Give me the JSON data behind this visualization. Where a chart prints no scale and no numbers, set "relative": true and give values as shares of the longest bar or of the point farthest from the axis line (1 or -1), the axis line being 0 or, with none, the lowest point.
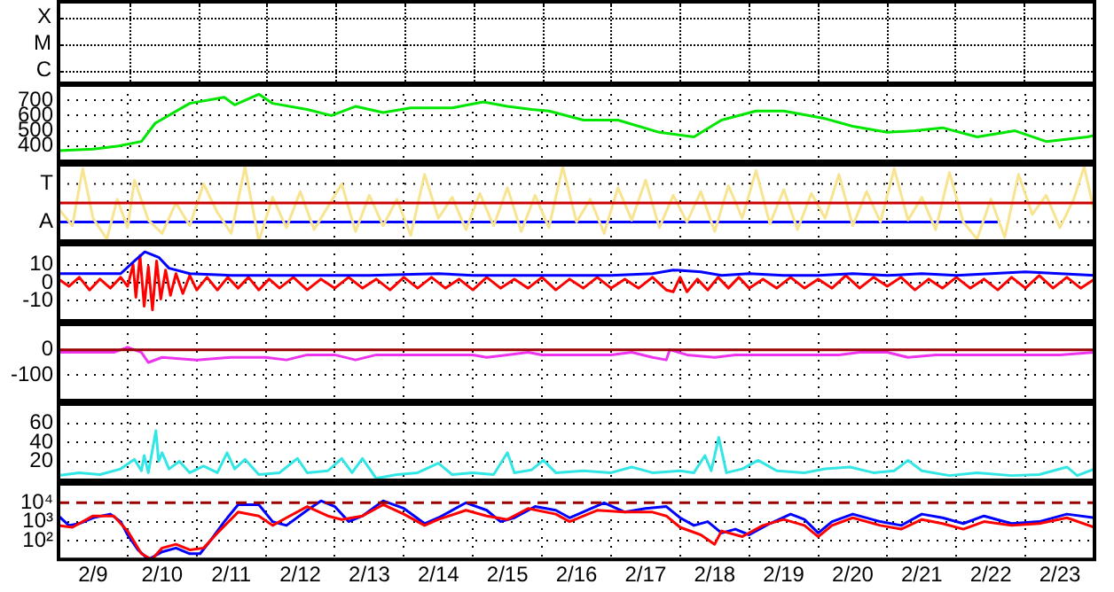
{
  "chart_data": [
    {
      "type": "other",
      "annotations": [
        "X",
        "M",
        "C"
      ]
    },
    {
      "type": "line",
      "tick_labels": "y",
      "grid": true,
      "xlim": [
        "--02-09",
        "--02-24"
      ],
      "xticks": [
        {
          "value": "--02-10",
          "label": null
        },
        {
          "value": "--02-11",
          "label": null
        },
        {
          "value": "--02-12",
          "label": null
        },
        {
          "value": "--02-13",
          "label": null
        },
        {
          "value": "--02-14",
          "label": null
        },
        {
          "value": "--02-15",
          "label": null
        },
        {
          "value": "--02-16",
          "label": null
        },
        {
          "value": "--02-17",
          "label": null
        },
        {
          "value": "--02-18",
          "label": null
        },
        {
          "value": "--02-19",
          "label": null
        },
        {
          "value": "--02-20",
          "label": null
        },
        {
          "value": "--02-21",
          "label": null
        },
        {
          "value": "--02-22",
          "label": null
        },
        {
          "value": "--02-23",
          "label": null
        }
      ],
      "ylim": [
        300,
        800
      ],
      "yticks": [
        400,
        500,
        600,
        700
      ],
      "series": [
        {
          "color": "#00e600",
          "x": [
            "--02-09",
            "--02-09T12:00",
            "--02-09T20:53",
            "--02-10T04:48",
            "--02-10T09:36",
            "--02-10T21:36",
            "--02-11T09:36",
            "--02-11T13:12",
            "--02-11T21:36",
            "--02-12T02:24",
            "--02-12T14:24",
            "--02-12T22:48",
            "--02-13T07:12",
            "--02-13T16:48",
            "--02-14T02:24",
            "--02-14T16:48",
            "--02-15T03:36",
            "--02-15T12:00",
            "--02-15T20:24",
            "--02-16T02:24",
            "--02-16T14:24",
            "--02-17T02:24",
            "--02-17T16:48",
            "--02-18T04:48",
            "--02-18T14:24",
            "--02-19T02:24",
            "--02-19T12:00",
            "--02-20T02:24",
            "--02-20T12:00",
            "--02-21",
            "--02-21T09:36",
            "--02-21T19:12",
            "--02-22T07:12",
            "--02-22T20:24",
            "--02-23T07:12",
            "--02-23T21:36",
            "--02-24"
          ],
          "values": [
            370,
            380,
            400,
            430,
            550,
            680,
            720,
            670,
            740,
            680,
            640,
            600,
            660,
            620,
            650,
            650,
            690,
            660,
            640,
            630,
            570,
            570,
            490,
            460,
            570,
            630,
            630,
            580,
            530,
            490,
            500,
            520,
            460,
            500,
            430,
            460,
            470
          ]
        }
      ]
    },
    {
      "type": "line",
      "relative": true,
      "tick_labels": false,
      "grid": true,
      "xlim": [
        "--02-09",
        "--02-24"
      ],
      "xticks": [
        {
          "value": "--02-10",
          "label": null
        },
        {
          "value": "--02-11",
          "label": null
        },
        {
          "value": "--02-12",
          "label": null
        },
        {
          "value": "--02-13",
          "label": null
        },
        {
          "value": "--02-14",
          "label": null
        },
        {
          "value": "--02-15",
          "label": null
        },
        {
          "value": "--02-16",
          "label": null
        },
        {
          "value": "--02-17",
          "label": null
        },
        {
          "value": "--02-18",
          "label": null
        },
        {
          "value": "--02-19",
          "label": null
        },
        {
          "value": "--02-20",
          "label": null
        },
        {
          "value": "--02-21",
          "label": null
        },
        {
          "value": "--02-22",
          "label": null
        },
        {
          "value": "--02-23",
          "label": null
        }
      ],
      "annotations": [
        "T",
        "A"
      ],
      "ref_lines": [
        {
          "axis": "y",
          "value": 0,
          "color": "#cc0000"
        }
      ],
      "series": [
        {
          "color": "#f8e490",
          "x": [
            "--02-09",
            "--02-09T04:48",
            "--02-09T08:24",
            "--02-09T12:00",
            "--02-09T16:48",
            "--02-09T20:24",
            "--02-10",
            "--02-10T02:24",
            "--02-10T07:12",
            "--02-10T12:00",
            "--02-10T16:48",
            "--02-10T21:36",
            "--02-11T02:24",
            "--02-11T07:12",
            "--02-11T12:00",
            "--02-11T16:48",
            "--02-11T21:36",
            "--02-12T02:24",
            "--02-12T07:12",
            "--02-12T12:00",
            "--02-12T16:48",
            "--02-12T21:36",
            "--02-13T02:24",
            "--02-13T07:12",
            "--02-13T12:00",
            "--02-13T16:48",
            "--02-13T21:36",
            "--02-14T02:24",
            "--02-14T07:12",
            "--02-14T12:00",
            "--02-14T16:48",
            "--02-14T21:36",
            "--02-15T02:24",
            "--02-15T07:12",
            "--02-15T12:00",
            "--02-15T16:48",
            "--02-15T21:36",
            "--02-16T02:24",
            "--02-16T07:12",
            "--02-16T12:00",
            "--02-16T16:48",
            "--02-16T21:36",
            "--02-17T02:24",
            "--02-17T07:12",
            "--02-17T12:00",
            "--02-17T16:48",
            "--02-17T21:36",
            "--02-18T02:24",
            "--02-18T07:12",
            "--02-18T12:00",
            "--02-18T16:48",
            "--02-18T21:36",
            "--02-19T02:24",
            "--02-19T07:12",
            "--02-19T12:00",
            "--02-19T16:48",
            "--02-19T21:36",
            "--02-20T02:24",
            "--02-20T07:12",
            "--02-20T12:00",
            "--02-20T16:48",
            "--02-20T21:36",
            "--02-21T02:24",
            "--02-21T07:12",
            "--02-21T12:00",
            "--02-21T16:48",
            "--02-21T21:36",
            "--02-22T02:24",
            "--02-22T07:12",
            "--02-22T12:00",
            "--02-22T16:48",
            "--02-22T21:36",
            "--02-23T02:24",
            "--02-23T07:12",
            "--02-23T12:00",
            "--02-23T16:48",
            "--02-23T20:24",
            "--02-24"
          ],
          "values": [
            -0.15,
            -0.6,
            0.9,
            -0.4,
            -0.95,
            0.1,
            -0.65,
            0.6,
            -0.45,
            -0.8,
            0,
            -0.6,
            0.5,
            -0.25,
            -0.8,
            0.95,
            -1,
            0.15,
            -0.65,
            0.3,
            -0.7,
            -0.1,
            0.5,
            -0.75,
            0.2,
            -0.6,
            0.1,
            -0.85,
            0.75,
            -0.4,
            0.15,
            -0.7,
            0.25,
            -0.6,
            0.4,
            -0.75,
            0.2,
            -0.65,
            0.95,
            -0.5,
            0.1,
            -0.8,
            0.4,
            -0.45,
            0.6,
            -0.65,
            0.2,
            -0.5,
            0.3,
            -0.75,
            0.45,
            -0.4,
            0.85,
            -0.55,
            0.35,
            -0.7,
            0.25,
            -0.4,
            0.75,
            -0.6,
            0.3,
            -0.5,
            0.9,
            -0.45,
            0.15,
            -0.7,
            0.8,
            -0.5,
            -0.95,
            0.1,
            -0.9,
            0.75,
            -0.3,
            0.2,
            -0.65,
            0.1,
            0.95,
            -0.25
          ]
        },
        {
          "color": "#0000ff",
          "x": [
            "--02-09",
            "--02-22T14:24"
          ],
          "values": [
            -0.5,
            -0.5
          ]
        }
      ]
    },
    {
      "type": "line",
      "tick_labels": "y",
      "grid": true,
      "xlim": [
        "--02-09",
        "--02-24"
      ],
      "xticks": [
        {
          "value": "--02-10",
          "label": null
        },
        {
          "value": "--02-11",
          "label": null
        },
        {
          "value": "--02-12",
          "label": null
        },
        {
          "value": "--02-13",
          "label": null
        },
        {
          "value": "--02-14",
          "label": null
        },
        {
          "value": "--02-15",
          "label": null
        },
        {
          "value": "--02-16",
          "label": null
        },
        {
          "value": "--02-17",
          "label": null
        },
        {
          "value": "--02-18",
          "label": null
        },
        {
          "value": "--02-19",
          "label": null
        },
        {
          "value": "--02-20",
          "label": null
        },
        {
          "value": "--02-21",
          "label": null
        },
        {
          "value": "--02-22",
          "label": null
        },
        {
          "value": "--02-23",
          "label": null
        }
      ],
      "ylim": [
        -21,
        21
      ],
      "yticks": [
        -10,
        0,
        10
      ],
      "series": [
        {
          "color": "#0000ff",
          "x": [
            "--02-09",
            "--02-09T21:36",
            "--02-10T02:24",
            "--02-10T06:00",
            "--02-10T10:48",
            "--02-10T14:24",
            "--02-10T21:36",
            "--02-11T12:00",
            "--02-12T12:00",
            "--02-13T12:00",
            "--02-14T12:00",
            "--02-15",
            "--02-16",
            "--02-17",
            "--02-17T14:24",
            "--02-17T21:36",
            "--02-18T07:12",
            "--02-18T14:24",
            "--02-19",
            "--02-19T12:00",
            "--02-20",
            "--02-20T12:00",
            "--02-21",
            "--02-21T12:00",
            "--02-22",
            "--02-22T12:00",
            "--02-23",
            "--02-23T12:00",
            "--02-24"
          ],
          "values": [
            5,
            5,
            12,
            17,
            14,
            8,
            5,
            4,
            4,
            4,
            5,
            4,
            4,
            4,
            5,
            7,
            6,
            4,
            5,
            4,
            4,
            5,
            4,
            5,
            4,
            5,
            6,
            5,
            4
          ]
        },
        {
          "color": "#ff0000",
          "x": [
            "--02-09",
            "--02-09T03:36",
            "--02-09T07:12",
            "--02-09T10:48",
            "--02-09T14:24",
            "--02-09T18:00",
            "--02-09T21:36",
            "--02-10",
            "--02-10T01:55",
            "--02-10T02:53",
            "--02-10T04:19",
            "--02-10T05:46",
            "--02-10T07:12",
            "--02-10T08:38",
            "--02-10T10:05",
            "--02-10T11:31",
            "--02-10T13:12",
            "--02-10T14:53",
            "--02-10T16:48",
            "--02-10T19:12",
            "--02-10T21:36",
            "--02-11",
            "--02-11T03:36",
            "--02-11T07:12",
            "--02-11T10:48",
            "--02-11T14:24",
            "--02-11T18:00",
            "--02-11T21:36",
            "--02-12T01:12",
            "--02-12T04:48",
            "--02-12T09:36",
            "--02-12T14:24",
            "--02-12T19:12",
            "--02-13",
            "--02-13T04:48",
            "--02-13T09:36",
            "--02-13T14:24",
            "--02-13T19:12",
            "--02-14",
            "--02-14T04:48",
            "--02-14T09:36",
            "--02-14T14:24",
            "--02-14T19:12",
            "--02-15",
            "--02-15T04:48",
            "--02-15T09:36",
            "--02-15T14:24",
            "--02-15T19:12",
            "--02-16",
            "--02-16T04:48",
            "--02-16T09:36",
            "--02-16T14:24",
            "--02-16T19:12",
            "--02-17",
            "--02-17T04:48",
            "--02-17T09:36",
            "--02-17T14:24",
            "--02-17T19:12",
            "--02-17T21:36",
            "--02-18",
            "--02-18T02:24",
            "--02-18T06:00",
            "--02-18T09:36",
            "--02-18T13:12",
            "--02-18T16:48",
            "--02-18T20:24",
            "--02-19",
            "--02-19T04:48",
            "--02-19T09:36",
            "--02-19T14:24",
            "--02-19T19:12",
            "--02-20",
            "--02-20T04:48",
            "--02-20T09:36",
            "--02-20T14:24",
            "--02-20T19:12",
            "--02-21",
            "--02-21T04:48",
            "--02-21T09:36",
            "--02-21T14:24",
            "--02-21T19:12",
            "--02-22",
            "--02-22T04:48",
            "--02-22T09:36",
            "--02-22T14:24",
            "--02-22T19:12",
            "--02-23",
            "--02-23T04:48",
            "--02-23T09:36",
            "--02-23T14:24",
            "--02-23T19:12",
            "--02-24"
          ],
          "values": [
            2,
            -2,
            3,
            -4,
            2,
            -3,
            3,
            -2,
            10,
            -8,
            15,
            -13,
            9,
            -15,
            12,
            -9,
            7,
            -7,
            5,
            -6,
            4,
            -4,
            3,
            -4,
            3,
            -3,
            3,
            -4,
            2,
            -3,
            3,
            -4,
            2,
            -3,
            3,
            -3,
            2,
            -4,
            3,
            -3,
            3,
            -3,
            2,
            -4,
            3,
            -3,
            2,
            -3,
            3,
            -4,
            2,
            -3,
            3,
            -3,
            2,
            -3,
            3,
            -4,
            -5,
            3,
            -5,
            2,
            -4,
            3,
            -3,
            3,
            -3,
            2,
            -3,
            3,
            -3,
            2,
            -3,
            4,
            -3,
            3,
            -2,
            3,
            -4,
            2,
            -3,
            3,
            -3,
            2,
            -4,
            3,
            -3,
            4,
            -3,
            3,
            -3,
            2
          ]
        }
      ]
    },
    {
      "type": "line",
      "tick_labels": "y",
      "grid": true,
      "xlim": [
        "--02-09",
        "--02-24"
      ],
      "xticks": [
        {
          "value": "--02-10",
          "label": null
        },
        {
          "value": "--02-11",
          "label": null
        },
        {
          "value": "--02-12",
          "label": null
        },
        {
          "value": "--02-13",
          "label": null
        },
        {
          "value": "--02-14",
          "label": null
        },
        {
          "value": "--02-15",
          "label": null
        },
        {
          "value": "--02-16",
          "label": null
        },
        {
          "value": "--02-17",
          "label": null
        },
        {
          "value": "--02-18",
          "label": null
        },
        {
          "value": "--02-19",
          "label": null
        },
        {
          "value": "--02-20",
          "label": null
        },
        {
          "value": "--02-21",
          "label": null
        },
        {
          "value": "--02-22",
          "label": null
        },
        {
          "value": "--02-23",
          "label": null
        }
      ],
      "ylim": [
        -200,
        100
      ],
      "yticks": [
        -100,
        0
      ],
      "ref_lines": [
        {
          "axis": "y",
          "value": 0,
          "color": "#990000"
        }
      ],
      "series": [
        {
          "color": "#ee33ee",
          "x": [
            "--02-09",
            "--02-09T12:00",
            "--02-09T19:12",
            "--02-10",
            "--02-10T04:48",
            "--02-10T07:12",
            "--02-10T12:00",
            "--02-11",
            "--02-11T12:00",
            "--02-12",
            "--02-12T07:12",
            "--02-12T14:24",
            "--02-13",
            "--02-13T07:12",
            "--02-13T14:24",
            "--02-14",
            "--02-14T12:00",
            "--02-15",
            "--02-15T04:48",
            "--02-15T12:00",
            "--02-15T19:12",
            "--02-16",
            "--02-16T12:00",
            "--02-17",
            "--02-17T07:12",
            "--02-17T14:24",
            "--02-17T19:12",
            "--02-17T20:24",
            "--02-18T02:24",
            "--02-18T12:00",
            "--02-18T19:12",
            "--02-19T07:12",
            "--02-19T19:12",
            "--02-20T07:12",
            "--02-20T14:24",
            "--02-21",
            "--02-21T07:12",
            "--02-21T16:48",
            "--02-22T04:48",
            "--02-22T14:24",
            "--02-23",
            "--02-23T12:00",
            "--02-24"
          ],
          "values": [
            -10,
            -10,
            -10,
            10,
            -10,
            -50,
            -30,
            -40,
            -30,
            -30,
            -40,
            -20,
            -20,
            -40,
            -20,
            -20,
            -20,
            -20,
            -30,
            -20,
            -10,
            -20,
            -20,
            -20,
            -10,
            -30,
            -40,
            0,
            -20,
            -30,
            -20,
            -20,
            -20,
            -20,
            -10,
            -10,
            -30,
            -20,
            -20,
            -20,
            -20,
            -20,
            -10
          ]
        }
      ]
    },
    {
      "type": "line",
      "tick_labels": "y",
      "grid": true,
      "xlim": [
        "--02-09",
        "--02-24"
      ],
      "xticks": [
        {
          "value": "--02-10",
          "label": null
        },
        {
          "value": "--02-11",
          "label": null
        },
        {
          "value": "--02-12",
          "label": null
        },
        {
          "value": "--02-13",
          "label": null
        },
        {
          "value": "--02-14",
          "label": null
        },
        {
          "value": "--02-15",
          "label": null
        },
        {
          "value": "--02-16",
          "label": null
        },
        {
          "value": "--02-17",
          "label": null
        },
        {
          "value": "--02-18",
          "label": null
        },
        {
          "value": "--02-19",
          "label": null
        },
        {
          "value": "--02-20",
          "label": null
        },
        {
          "value": "--02-21",
          "label": null
        },
        {
          "value": "--02-22",
          "label": null
        },
        {
          "value": "--02-23",
          "label": null
        }
      ],
      "ylim": [
        0,
        80
      ],
      "yticks": [
        20,
        40,
        60
      ],
      "series": [
        {
          "color": "#33e6e6",
          "x": [
            "--02-09",
            "--02-09T07:12",
            "--02-09T14:24",
            "--02-09T21:36",
            "--02-10T02:24",
            "--02-10T04:48",
            "--02-10T05:46",
            "--02-10T07:12",
            "--02-10T09:50",
            "--02-10T10:48",
            "--02-10T12:00",
            "--02-10T14:24",
            "--02-10T18:00",
            "--02-10T21:36",
            "--02-11T02:24",
            "--02-11T07:12",
            "--02-11T10:34",
            "--02-11T13:12",
            "--02-11T16:48",
            "--02-11T21:36",
            "--02-12T04:48",
            "--02-12T11:02",
            "--02-12T14:24",
            "--02-12T21:36",
            "--02-13T02:24",
            "--02-13T06:00",
            "--02-13T09:36",
            "--02-13T14:24",
            "--02-13T21:36",
            "--02-14T04:48",
            "--02-14T12:00",
            "--02-14T16:48",
            "--02-15",
            "--02-15T07:12",
            "--02-15T12:00",
            "--02-15T14:24",
            "--02-15T20:24",
            "--02-16T00:29",
            "--02-16T04:48",
            "--02-16T14:24",
            "--02-17",
            "--02-17T07:12",
            "--02-17T14:24",
            "--02-18",
            "--02-18T04:48",
            "--02-18T08:38",
            "--02-18T10:48",
            "--02-18T13:26",
            "--02-18T16:05",
            "--02-18T21:36",
            "--02-19T03:07",
            "--02-19T09:36",
            "--02-19T19:12",
            "--02-20T02:24",
            "--02-20T11:02",
            "--02-20T19:12",
            "--02-21T02:24",
            "--02-21T07:12",
            "--02-21T12:00",
            "--02-21T21:36",
            "--02-22T07:12",
            "--02-22T19:12",
            "--02-23T04:48",
            "--02-23T14:24",
            "--02-23T18:00",
            "--02-24"
          ],
          "values": [
            5,
            8,
            6,
            12,
            22,
            10,
            26,
            8,
            52,
            20,
            29,
            12,
            20,
            8,
            15,
            8,
            29,
            12,
            22,
            6,
            8,
            23,
            8,
            10,
            23,
            8,
            23,
            2,
            6,
            8,
            18,
            6,
            8,
            6,
            29,
            8,
            11,
            21,
            8,
            10,
            8,
            14,
            8,
            10,
            8,
            26,
            10,
            45,
            8,
            12,
            21,
            10,
            8,
            12,
            14,
            8,
            10,
            21,
            10,
            5,
            8,
            5,
            6,
            14,
            5,
            12
          ]
        }
      ]
    },
    {
      "type": "line",
      "log": true,
      "grid": true,
      "xlim": [
        "--02-09",
        "--02-24"
      ],
      "xticks": [
        {
          "value": "--02-09T12:00",
          "label": "2/9"
        },
        {
          "value": "--02-10",
          "label": null
        },
        {
          "value": "--02-10T12:00",
          "label": "2/10"
        },
        {
          "value": "--02-11",
          "label": null
        },
        {
          "value": "--02-11T12:00",
          "label": "2/11"
        },
        {
          "value": "--02-12",
          "label": null
        },
        {
          "value": "--02-12T12:00",
          "label": "2/12"
        },
        {
          "value": "--02-13",
          "label": null
        },
        {
          "value": "--02-13T12:00",
          "label": "2/13"
        },
        {
          "value": "--02-14",
          "label": null
        },
        {
          "value": "--02-14T12:00",
          "label": "2/14"
        },
        {
          "value": "--02-15",
          "label": null
        },
        {
          "value": "--02-15T12:00",
          "label": "2/15"
        },
        {
          "value": "--02-16",
          "label": null
        },
        {
          "value": "--02-16T12:00",
          "label": "2/16"
        },
        {
          "value": "--02-17",
          "label": null
        },
        {
          "value": "--02-17T12:00",
          "label": "2/17"
        },
        {
          "value": "--02-18",
          "label": null
        },
        {
          "value": "--02-18T12:00",
          "label": "2/18"
        },
        {
          "value": "--02-19",
          "label": null
        },
        {
          "value": "--02-19T12:00",
          "label": "2/19"
        },
        {
          "value": "--02-20",
          "label": null
        },
        {
          "value": "--02-20T12:00",
          "label": "2/20"
        },
        {
          "value": "--02-21",
          "label": null
        },
        {
          "value": "--02-21T12:00",
          "label": "2/21"
        },
        {
          "value": "--02-22",
          "label": null
        },
        {
          "value": "--02-22T12:00",
          "label": "2/22"
        },
        {
          "value": "--02-23",
          "label": null
        },
        {
          "value": "--02-23T12:00",
          "label": "2/23"
        }
      ],
      "ylim": [
        10,
        100000
      ],
      "yticks": [
        {
          "value": 100,
          "label": "10²"
        },
        {
          "value": 1000,
          "label": "10³"
        },
        {
          "value": 10000,
          "label": "10⁴"
        }
      ],
      "ref_lines": [
        {
          "axis": "y",
          "value": 10000,
          "color": "#990000",
          "line_style": "dashed"
        }
      ],
      "series": [
        {
          "color": "#ff0000",
          "x": [
            "--02-09",
            "--02-09T04:48",
            "--02-09T12:00",
            "--02-09T19:12",
            "--02-10",
            "--02-10T04:48",
            "--02-10T08:24",
            "--02-10T12:00",
            "--02-10T16:48",
            "--02-10T21:36",
            "--02-11T02:24",
            "--02-11T07:12",
            "--02-11T14:24",
            "--02-11T21:36",
            "--02-12T02:24",
            "--02-12T07:12",
            "--02-12T14:24",
            "--02-12T21:36",
            "--02-13T02:24",
            "--02-13T09:36",
            "--02-13T16:48",
            "--02-14",
            "--02-14T07:12",
            "--02-14T12:00",
            "--02-14T21:36",
            "--02-15T04:48",
            "--02-15T12:00",
            "--02-15T19:12",
            "--02-16T04:48",
            "--02-16T09:36",
            "--02-16T19:12",
            "--02-17T04:48",
            "--02-17T14:24",
            "--02-17T19:12",
            "--02-18",
            "--02-18T07:12",
            "--02-18T12:00",
            "--02-18T14:24",
            "--02-18T21:36",
            "--02-19T04:48",
            "--02-19T12:00",
            "--02-19T19:12",
            "--02-20",
            "--02-20T04:48",
            "--02-20T12:00",
            "--02-20T21:36",
            "--02-21T04:48",
            "--02-21T12:00",
            "--02-21T19:12",
            "--02-22T02:24",
            "--02-22T09:36",
            "--02-22T19:12",
            "--02-23T04:48",
            "--02-23T14:24",
            "--02-24"
          ],
          "values": [
            630,
            500,
            2000,
            2000,
            320,
            20,
            10,
            40,
            63,
            32,
            40,
            250,
            3200,
            2000,
            630,
            1600,
            6300,
            2000,
            1300,
            2000,
            7900,
            2500,
            630,
            1300,
            4000,
            2000,
            1300,
            5000,
            2500,
            1000,
            4000,
            3200,
            3200,
            2000,
            500,
            200,
            63,
            320,
            160,
            630,
            1300,
            630,
            160,
            630,
            1600,
            630,
            400,
            1300,
            790,
            400,
            1000,
            630,
            790,
            1600,
            500
          ]
        },
        {
          "color": "#0000ff",
          "x": [
            "--02-09",
            "--02-09T03:36",
            "--02-09T07:12",
            "--02-09T12:00",
            "--02-09T18:00",
            "--02-09T21:36",
            "--02-10",
            "--02-10T03:36",
            "--02-10T07:12",
            "--02-10T12:00",
            "--02-10T16:48",
            "--02-10T21:36",
            "--02-11T01:12",
            "--02-11T04:48",
            "--02-11T09:36",
            "--02-11T14:24",
            "--02-11T21:36",
            "--02-12T02:24",
            "--02-12T07:12",
            "--02-12T14:24",
            "--02-12T19:12",
            "--02-13",
            "--02-13T04:48",
            "--02-13T09:36",
            "--02-13T16:48",
            "--02-14",
            "--02-14T07:12",
            "--02-14T12:00",
            "--02-14T21:36",
            "--02-15T04:48",
            "--02-15T09:36",
            "--02-15T14:24",
            "--02-15T21:36",
            "--02-16T04:48",
            "--02-16T09:36",
            "--02-16T21:36",
            "--02-17T04:48",
            "--02-17T12:00",
            "--02-17T19:12",
            "--02-18",
            "--02-18T04:48",
            "--02-18T09:36",
            "--02-18T14:24",
            "--02-18T19:12",
            "--02-19",
            "--02-19T07:12",
            "--02-19T14:24",
            "--02-19T19:12",
            "--02-20",
            "--02-20T04:48",
            "--02-20T12:00",
            "--02-20T21:36",
            "--02-21T04:48",
            "--02-21T12:00",
            "--02-21T19:12",
            "--02-22T02:24",
            "--02-22T09:36",
            "--02-22T19:12",
            "--02-23T04:48",
            "--02-23T14:24",
            "--02-24"
          ],
          "values": [
            2000,
            630,
            790,
            1600,
            2500,
            1000,
            200,
            32,
            10,
            25,
            40,
            20,
            20,
            100,
            1000,
            7900,
            7900,
            1000,
            630,
            4000,
            12600,
            6300,
            1000,
            2000,
            12600,
            5000,
            790,
            1600,
            10000,
            4000,
            1000,
            1600,
            6300,
            4000,
            1600,
            10000,
            3200,
            5000,
            6300,
            1600,
            630,
            1000,
            250,
            400,
            200,
            790,
            2500,
            1300,
            250,
            1000,
            2500,
            1000,
            630,
            2500,
            1600,
            790,
            2000,
            790,
            1000,
            2500,
            1600
          ]
        }
      ]
    }
  ]
}
